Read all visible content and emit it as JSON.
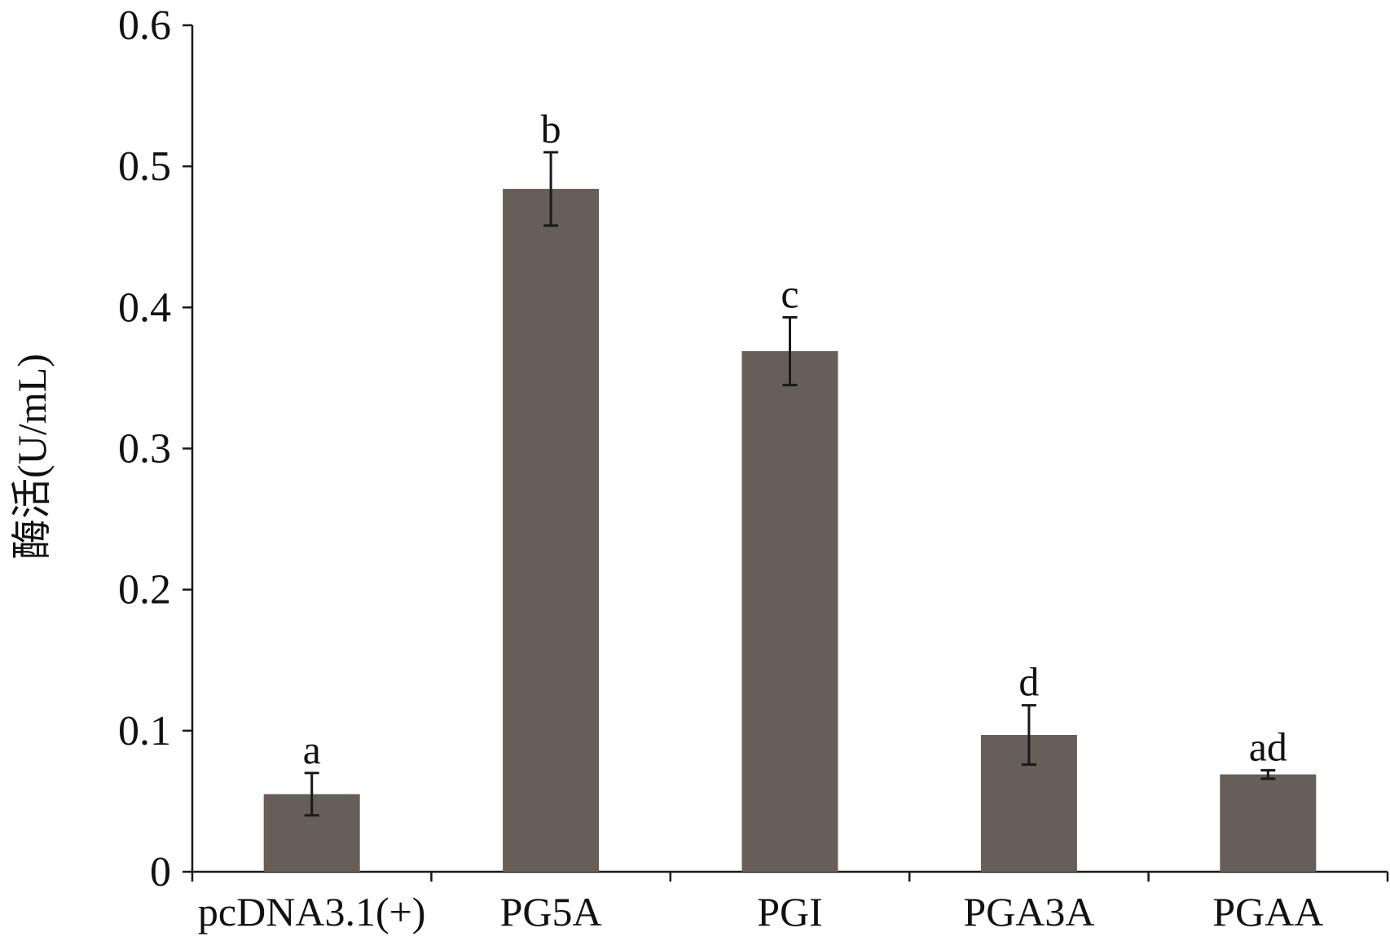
{
  "chart_data": {
    "type": "bar",
    "ylabel": "酶活(U/mL)",
    "xlabel": "",
    "ylim": [
      0,
      0.6
    ],
    "yticks": [
      "0",
      "0.1",
      "0.2",
      "0.3",
      "0.4",
      "0.5",
      "0.6"
    ],
    "categories": [
      "pcDNA3.1(+)",
      "PG5A",
      "PGI",
      "PGA3A",
      "PGAA"
    ],
    "values": [
      0.055,
      0.484,
      0.369,
      0.097,
      0.069
    ],
    "errors": [
      0.015,
      0.026,
      0.024,
      0.021,
      0.003
    ],
    "significance": [
      "a",
      "b",
      "c",
      "d",
      "ad"
    ],
    "bar_color": "#665e59",
    "error_color": "#1a1a1a",
    "grid": false,
    "legend": "none"
  }
}
